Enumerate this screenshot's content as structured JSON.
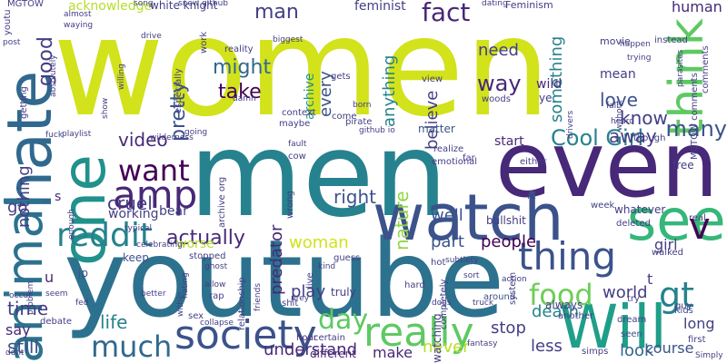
{
  "palette": [
    "#d2e21b",
    "#26828e",
    "#2c728e",
    "#482878",
    "#3b528b",
    "#31688e",
    "#21918c",
    "#1f9e89",
    "#35b779",
    "#5ec962",
    "#6ece58",
    "#90d743",
    "#b5de2b",
    "#440154",
    "#433e85"
  ],
  "words": [
    {
      "text": "women"
    },
    {
      "text": "men"
    },
    {
      "text": "youtube"
    },
    {
      "text": "even"
    },
    {
      "text": "watch"
    },
    {
      "text": "hate"
    },
    {
      "text": "one"
    },
    {
      "text": "Will"
    },
    {
      "text": "see"
    },
    {
      "text": "animal"
    },
    {
      "text": "society"
    },
    {
      "text": "really"
    },
    {
      "text": "think"
    },
    {
      "text": "amp"
    },
    {
      "text": "thing"
    },
    {
      "text": "reddit"
    },
    {
      "text": "much"
    },
    {
      "text": "want"
    },
    {
      "text": "v"
    },
    {
      "text": "gt"
    },
    {
      "text": "food"
    },
    {
      "text": "day"
    },
    {
      "text": "fact"
    },
    {
      "text": "might"
    },
    {
      "text": "take"
    },
    {
      "text": "way"
    },
    {
      "text": "Cool Girl"
    },
    {
      "text": "video"
    },
    {
      "text": "man"
    },
    {
      "text": "people"
    },
    {
      "text": "actually"
    },
    {
      "text": "woman"
    },
    {
      "text": "know"
    },
    {
      "text": "love"
    },
    {
      "text": "away"
    },
    {
      "text": "many"
    },
    {
      "text": "life"
    },
    {
      "text": "time"
    },
    {
      "text": "still"
    },
    {
      "text": "right"
    },
    {
      "text": "play"
    },
    {
      "text": "nature"
    },
    {
      "text": "predator"
    },
    {
      "text": "understand"
    },
    {
      "text": "stop"
    },
    {
      "text": "world"
    },
    {
      "text": "long"
    },
    {
      "text": "death"
    },
    {
      "text": "less"
    },
    {
      "text": "look"
    },
    {
      "text": "course"
    },
    {
      "text": "make"
    },
    {
      "text": "never"
    },
    {
      "text": "good"
    },
    {
      "text": "need"
    },
    {
      "text": "mean"
    },
    {
      "text": "human"
    },
    {
      "text": "something"
    },
    {
      "text": "believe"
    },
    {
      "text": "anything"
    },
    {
      "text": "every"
    },
    {
      "text": "archive"
    },
    {
      "text": "pretty"
    },
    {
      "text": "well"
    },
    {
      "text": "part"
    },
    {
      "text": "start"
    },
    {
      "text": "cruel"
    },
    {
      "text": "bear"
    },
    {
      "text": "working"
    },
    {
      "text": "nothing"
    },
    {
      "text": "girl"
    },
    {
      "text": "say"
    },
    {
      "text": "keep"
    },
    {
      "text": "u"
    },
    {
      "text": "acknowledge"
    },
    {
      "text": "white knight"
    },
    {
      "text": "feminist"
    },
    {
      "text": "wild"
    },
    {
      "text": "ye"
    },
    {
      "text": "t"
    },
    {
      "text": "s"
    },
    {
      "text": "jp"
    },
    {
      "text": "worse"
    },
    {
      "text": "different"
    },
    {
      "text": "certain"
    },
    {
      "text": "hour"
    },
    {
      "text": "sex"
    },
    {
      "text": "debate"
    },
    {
      "text": "context"
    },
    {
      "text": "maybe"
    },
    {
      "text": "truly"
    },
    {
      "text": "matter"
    },
    {
      "text": "whatever"
    },
    {
      "text": "real"
    },
    {
      "text": "walked"
    },
    {
      "text": "week"
    },
    {
      "text": "bullshit"
    },
    {
      "text": "either"
    },
    {
      "text": "hot"
    },
    {
      "text": "free"
    },
    {
      "text": "around"
    },
    {
      "text": "always"
    },
    {
      "text": "watching"
    },
    {
      "text": "seen"
    },
    {
      "text": "Kids"
    },
    {
      "text": "guy"
    },
    {
      "text": "first"
    },
    {
      "text": "Simply"
    },
    {
      "text": "dream"
    },
    {
      "text": "simps"
    },
    {
      "text": "fantasy"
    },
    {
      "text": "MGTOW"
    },
    {
      "text": "song"
    },
    {
      "text": "dating"
    },
    {
      "text": "Feminism"
    },
    {
      "text": "movie"
    },
    {
      "text": "instead"
    },
    {
      "text": "snew github"
    },
    {
      "text": "biggest"
    },
    {
      "text": "post"
    },
    {
      "text": "youtu"
    },
    {
      "text": "almost"
    },
    {
      "text": "waying"
    },
    {
      "text": "drive"
    },
    {
      "text": "work"
    },
    {
      "text": "reality"
    },
    {
      "text": "view"
    },
    {
      "text": "woods"
    },
    {
      "text": "happen"
    },
    {
      "text": "trying"
    },
    {
      "text": "born"
    },
    {
      "text": "gets"
    },
    {
      "text": "damn"
    },
    {
      "text": "come"
    },
    {
      "text": "fall"
    },
    {
      "text": "without"
    },
    {
      "text": "comments"
    },
    {
      "text": "MGTOW comments"
    },
    {
      "text": "parasites"
    },
    {
      "text": "heard"
    },
    {
      "text": "though"
    },
    {
      "text": "drivers"
    },
    {
      "text": "pirate"
    },
    {
      "text": "github io"
    },
    {
      "text": "fault"
    },
    {
      "text": "cow"
    },
    {
      "text": "going"
    },
    {
      "text": "wilderness"
    },
    {
      "text": "playlist"
    },
    {
      "text": "fuck"
    },
    {
      "text": "getting"
    },
    {
      "text": "show"
    },
    {
      "text": "willing"
    },
    {
      "text": "especially"
    },
    {
      "text": "absolutely"
    },
    {
      "text": "enough"
    },
    {
      "text": "typical"
    },
    {
      "text": "archive org"
    },
    {
      "text": "wrong"
    },
    {
      "text": "realize"
    },
    {
      "text": "emotional"
    },
    {
      "text": "far"
    },
    {
      "text": "re"
    },
    {
      "text": "deleted"
    },
    {
      "text": "go"
    },
    {
      "text": "problem"
    },
    {
      "text": "seem"
    },
    {
      "text": "fed"
    },
    {
      "text": "occur"
    },
    {
      "text": "dont"
    },
    {
      "text": "better"
    },
    {
      "text": "collapse"
    },
    {
      "text": "within"
    },
    {
      "text": "rap"
    },
    {
      "text": "allow"
    },
    {
      "text": "hating"
    },
    {
      "text": "friends"
    },
    {
      "text": "relationship"
    },
    {
      "text": "ghost"
    },
    {
      "text": "stopped"
    },
    {
      "text": "celebrating"
    },
    {
      "text": "shit"
    },
    {
      "text": "prey"
    },
    {
      "text": "live"
    },
    {
      "text": "kind"
    },
    {
      "text": "guess"
    },
    {
      "text": "subtlety"
    },
    {
      "text": "truck"
    },
    {
      "text": "system"
    },
    {
      "text": "completely"
    },
    {
      "text": "sort"
    },
    {
      "text": "action"
    },
    {
      "text": "another"
    },
    {
      "text": "dogs"
    },
    {
      "text": "hard"
    },
    {
      "text": "try"
    }
  ]
}
